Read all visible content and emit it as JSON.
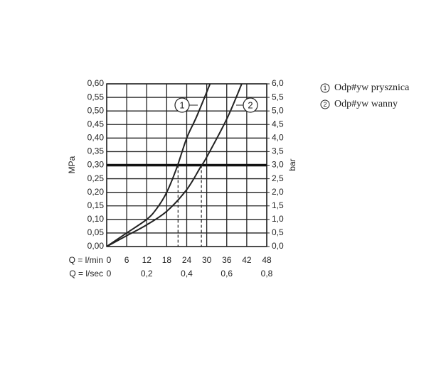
{
  "chart_data": {
    "type": "line",
    "ylabel": "MPa",
    "y2label": "bar",
    "xlabel": "Q = l/min",
    "x2label": "Q = l/sec",
    "xlim": [
      0,
      48
    ],
    "xticks": [
      0,
      6,
      12,
      18,
      24,
      30,
      36,
      42,
      48
    ],
    "x2lim": [
      0,
      0.8
    ],
    "x2ticks": [
      0,
      {
        "value": 0.2,
        "label": "0,2"
      },
      {
        "value": 0.4,
        "label": "0,4"
      },
      {
        "value": 0.6,
        "label": "0,6"
      },
      {
        "value": 0.8,
        "label": "0,8"
      }
    ],
    "ylim": [
      0,
      0.6
    ],
    "yticks": [
      {
        "value": 0,
        "label": "0,00"
      },
      {
        "value": 0.05,
        "label": "0,05"
      },
      {
        "value": 0.1,
        "label": "0,10"
      },
      {
        "value": 0.15,
        "label": "0,15"
      },
      {
        "value": 0.2,
        "label": "0,20"
      },
      {
        "value": 0.25,
        "label": "0,25"
      },
      {
        "value": 0.3,
        "label": "0,30"
      },
      {
        "value": 0.35,
        "label": "0,35"
      },
      {
        "value": 0.4,
        "label": "0,40"
      },
      {
        "value": 0.45,
        "label": "0,45"
      },
      {
        "value": 0.5,
        "label": "0,50"
      },
      {
        "value": 0.55,
        "label": "0,55"
      },
      {
        "value": 0.6,
        "label": "0,60"
      }
    ],
    "y2lim": [
      0,
      6
    ],
    "y2ticks": [
      {
        "value": 0,
        "label": "0,0"
      },
      {
        "value": 0.5,
        "label": "0,5"
      },
      {
        "value": 1,
        "label": "1,0"
      },
      {
        "value": 1.5,
        "label": "1,5"
      },
      {
        "value": 2,
        "label": "2,0"
      },
      {
        "value": 2.5,
        "label": "2,5"
      },
      {
        "value": 3,
        "label": "3,0"
      },
      {
        "value": 3.5,
        "label": "3,5"
      },
      {
        "value": 4,
        "label": "4,0"
      },
      {
        "value": 4.5,
        "label": "4,5"
      },
      {
        "value": 5,
        "label": "5,0"
      },
      {
        "value": 5.5,
        "label": "5,5"
      },
      {
        "value": 6,
        "label": "6,0"
      }
    ],
    "grid": true,
    "hline": 0.3,
    "vlines": [
      21.4,
      28.4
    ],
    "series": [
      {
        "name": "Odp#yw prysznica",
        "label": "1",
        "color": "#222222",
        "x": [
          0,
          6,
          12,
          15,
          18,
          21,
          24,
          27,
          31
        ],
        "values": [
          0,
          0.05,
          0.1,
          0.14,
          0.2,
          0.29,
          0.4,
          0.48,
          0.6
        ]
      },
      {
        "name": "Odp#yw wanny",
        "label": "2",
        "color": "#222222",
        "x": [
          0,
          6,
          12,
          18,
          24,
          28,
          30,
          36,
          40.5
        ],
        "values": [
          0,
          0.04,
          0.08,
          0.13,
          0.21,
          0.29,
          0.33,
          0.47,
          0.6
        ]
      }
    ]
  }
}
